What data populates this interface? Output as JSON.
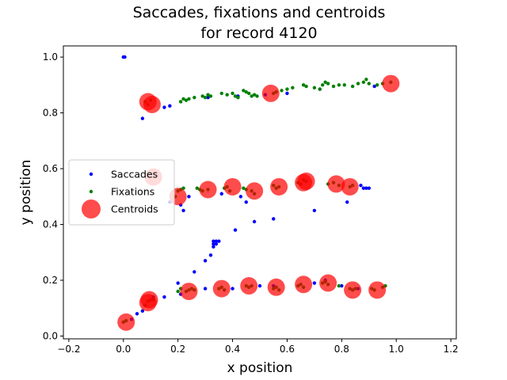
{
  "chart_data": {
    "type": "scatter",
    "title_line1": "Saccades, fixations and centroids",
    "title_line2": "for record 4120",
    "xlabel": "x position",
    "ylabel": "y position",
    "xlim": [
      -0.22,
      1.22
    ],
    "ylim": [
      -0.01,
      1.04
    ],
    "xticks": [
      {
        "value": -0.2,
        "label": "−0.2"
      },
      {
        "value": 0.0,
        "label": "0.0"
      },
      {
        "value": 0.2,
        "label": "0.2"
      },
      {
        "value": 0.4,
        "label": "0.4"
      },
      {
        "value": 0.6,
        "label": "0.6"
      },
      {
        "value": 0.8,
        "label": "0.8"
      },
      {
        "value": 1.0,
        "label": "1.0"
      },
      {
        "value": 1.2,
        "label": "1.2"
      }
    ],
    "yticks": [
      {
        "value": 0.0,
        "label": "0.0"
      },
      {
        "value": 0.2,
        "label": "0.2"
      },
      {
        "value": 0.4,
        "label": "0.4"
      },
      {
        "value": 0.6,
        "label": "0.6"
      },
      {
        "value": 0.8,
        "label": "0.8"
      },
      {
        "value": 1.0,
        "label": "1.0"
      }
    ],
    "legend": {
      "placement": "center-left",
      "entries": [
        {
          "label": "Saccades",
          "color": "#0000ff"
        },
        {
          "label": "Fixations",
          "color": "#008000"
        },
        {
          "label": "Centroids",
          "color": "#ff0000"
        }
      ]
    },
    "series": [
      {
        "name": "Saccades",
        "color": "#0000ff",
        "points": [
          [
            0.0,
            1.0
          ],
          [
            0.005,
            1.0
          ],
          [
            0.07,
            0.78
          ],
          [
            0.15,
            0.82
          ],
          [
            0.17,
            0.825
          ],
          [
            0.31,
            0.855
          ],
          [
            0.42,
            0.86
          ],
          [
            0.52,
            0.865
          ],
          [
            0.6,
            0.87
          ],
          [
            0.72,
            0.885
          ],
          [
            0.92,
            0.895
          ],
          [
            0.17,
            0.48
          ],
          [
            0.21,
            0.47
          ],
          [
            0.22,
            0.45
          ],
          [
            0.24,
            0.5
          ],
          [
            0.36,
            0.51
          ],
          [
            0.43,
            0.5
          ],
          [
            0.45,
            0.48
          ],
          [
            0.48,
            0.41
          ],
          [
            0.41,
            0.38
          ],
          [
            0.55,
            0.42
          ],
          [
            0.7,
            0.45
          ],
          [
            0.82,
            0.48
          ],
          [
            0.88,
            0.53
          ],
          [
            0.9,
            0.53
          ],
          [
            0.87,
            0.54
          ],
          [
            0.89,
            0.53
          ],
          [
            0.33,
            0.32
          ],
          [
            0.33,
            0.33
          ],
          [
            0.33,
            0.34
          ],
          [
            0.34,
            0.34
          ],
          [
            0.35,
            0.34
          ],
          [
            0.34,
            0.33
          ],
          [
            0.32,
            0.29
          ],
          [
            0.3,
            0.27
          ],
          [
            0.26,
            0.23
          ],
          [
            0.03,
            0.06
          ],
          [
            0.05,
            0.08
          ],
          [
            0.07,
            0.09
          ],
          [
            0.08,
            0.11
          ],
          [
            0.11,
            0.14
          ],
          [
            0.15,
            0.14
          ],
          [
            0.2,
            0.19
          ],
          [
            0.21,
            0.15
          ],
          [
            0.3,
            0.17
          ],
          [
            0.4,
            0.17
          ],
          [
            0.5,
            0.18
          ],
          [
            0.55,
            0.18
          ],
          [
            0.7,
            0.19
          ],
          [
            0.74,
            0.2
          ],
          [
            0.8,
            0.18
          ],
          [
            0.86,
            0.17
          ]
        ]
      },
      {
        "name": "Fixations",
        "color": "#008000",
        "points": [
          [
            0.08,
            0.84
          ],
          [
            0.09,
            0.83
          ],
          [
            0.1,
            0.845
          ],
          [
            0.21,
            0.84
          ],
          [
            0.22,
            0.85
          ],
          [
            0.23,
            0.845
          ],
          [
            0.24,
            0.85
          ],
          [
            0.26,
            0.855
          ],
          [
            0.29,
            0.86
          ],
          [
            0.3,
            0.855
          ],
          [
            0.31,
            0.865
          ],
          [
            0.32,
            0.86
          ],
          [
            0.36,
            0.87
          ],
          [
            0.38,
            0.865
          ],
          [
            0.4,
            0.87
          ],
          [
            0.41,
            0.86
          ],
          [
            0.42,
            0.855
          ],
          [
            0.44,
            0.88
          ],
          [
            0.45,
            0.875
          ],
          [
            0.46,
            0.87
          ],
          [
            0.47,
            0.86
          ],
          [
            0.48,
            0.865
          ],
          [
            0.49,
            0.86
          ],
          [
            0.55,
            0.87
          ],
          [
            0.56,
            0.875
          ],
          [
            0.58,
            0.88
          ],
          [
            0.6,
            0.885
          ],
          [
            0.62,
            0.89
          ],
          [
            0.66,
            0.9
          ],
          [
            0.67,
            0.895
          ],
          [
            0.7,
            0.89
          ],
          [
            0.72,
            0.885
          ],
          [
            0.73,
            0.9
          ],
          [
            0.74,
            0.91
          ],
          [
            0.75,
            0.905
          ],
          [
            0.77,
            0.895
          ],
          [
            0.79,
            0.9
          ],
          [
            0.81,
            0.9
          ],
          [
            0.84,
            0.895
          ],
          [
            0.86,
            0.905
          ],
          [
            0.88,
            0.91
          ],
          [
            0.89,
            0.92
          ],
          [
            0.9,
            0.905
          ],
          [
            0.93,
            0.9
          ],
          [
            0.95,
            0.905
          ],
          [
            0.98,
            0.91
          ],
          [
            0.19,
            0.5
          ],
          [
            0.2,
            0.52
          ],
          [
            0.21,
            0.525
          ],
          [
            0.22,
            0.53
          ],
          [
            0.27,
            0.53
          ],
          [
            0.28,
            0.525
          ],
          [
            0.29,
            0.52
          ],
          [
            0.31,
            0.525
          ],
          [
            0.37,
            0.53
          ],
          [
            0.38,
            0.535
          ],
          [
            0.39,
            0.52
          ],
          [
            0.44,
            0.53
          ],
          [
            0.45,
            0.525
          ],
          [
            0.47,
            0.52
          ],
          [
            0.48,
            0.51
          ],
          [
            0.55,
            0.54
          ],
          [
            0.56,
            0.53
          ],
          [
            0.57,
            0.535
          ],
          [
            0.64,
            0.55
          ],
          [
            0.65,
            0.545
          ],
          [
            0.66,
            0.56
          ],
          [
            0.67,
            0.555
          ],
          [
            0.75,
            0.545
          ],
          [
            0.77,
            0.55
          ],
          [
            0.79,
            0.54
          ],
          [
            0.83,
            0.535
          ],
          [
            0.84,
            0.54
          ],
          [
            0.0,
            0.05
          ],
          [
            0.01,
            0.055
          ],
          [
            0.08,
            0.11
          ],
          [
            0.09,
            0.125
          ],
          [
            0.1,
            0.13
          ],
          [
            0.11,
            0.13
          ],
          [
            0.2,
            0.16
          ],
          [
            0.21,
            0.17
          ],
          [
            0.23,
            0.16
          ],
          [
            0.24,
            0.165
          ],
          [
            0.25,
            0.17
          ],
          [
            0.26,
            0.165
          ],
          [
            0.35,
            0.17
          ],
          [
            0.36,
            0.175
          ],
          [
            0.37,
            0.165
          ],
          [
            0.45,
            0.18
          ],
          [
            0.46,
            0.175
          ],
          [
            0.47,
            0.18
          ],
          [
            0.55,
            0.17
          ],
          [
            0.56,
            0.175
          ],
          [
            0.57,
            0.165
          ],
          [
            0.64,
            0.18
          ],
          [
            0.65,
            0.185
          ],
          [
            0.66,
            0.175
          ],
          [
            0.73,
            0.19
          ],
          [
            0.74,
            0.195
          ],
          [
            0.75,
            0.185
          ],
          [
            0.79,
            0.18
          ],
          [
            0.83,
            0.17
          ],
          [
            0.84,
            0.165
          ],
          [
            0.85,
            0.17
          ],
          [
            0.91,
            0.17
          ],
          [
            0.92,
            0.165
          ],
          [
            0.95,
            0.175
          ],
          [
            0.96,
            0.18
          ]
        ]
      },
      {
        "name": "Centroids",
        "color": "#ff0000",
        "points": [
          [
            0.09,
            0.84
          ],
          [
            0.105,
            0.83
          ],
          [
            0.54,
            0.87
          ],
          [
            0.98,
            0.905
          ],
          [
            0.11,
            0.57
          ],
          [
            0.2,
            0.5
          ],
          [
            0.31,
            0.525
          ],
          [
            0.4,
            0.535
          ],
          [
            0.48,
            0.52
          ],
          [
            0.57,
            0.535
          ],
          [
            0.66,
            0.55
          ],
          [
            0.67,
            0.555
          ],
          [
            0.78,
            0.545
          ],
          [
            0.83,
            0.535
          ],
          [
            0.01,
            0.05
          ],
          [
            0.09,
            0.12
          ],
          [
            0.095,
            0.13
          ],
          [
            0.24,
            0.16
          ],
          [
            0.36,
            0.17
          ],
          [
            0.46,
            0.18
          ],
          [
            0.56,
            0.175
          ],
          [
            0.66,
            0.185
          ],
          [
            0.75,
            0.19
          ],
          [
            0.84,
            0.165
          ],
          [
            0.93,
            0.165
          ]
        ]
      }
    ]
  }
}
